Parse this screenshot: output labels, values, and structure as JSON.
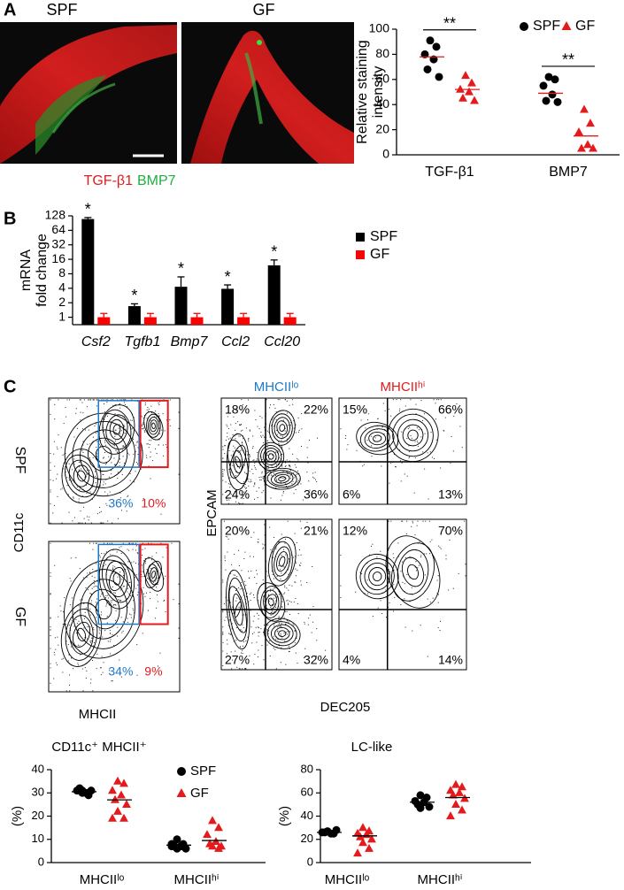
{
  "panel_labels": [
    "A",
    "B",
    "C"
  ],
  "images": {
    "titles": [
      "SPF",
      "GF"
    ],
    "stain_labels": [
      "TGF-β1",
      "BMP7"
    ]
  },
  "flow": {
    "row_labels": [
      "SPF",
      "GF"
    ],
    "gate_headers": [
      "MHCIIˡᵒ",
      "MHCIIʰⁱ"
    ],
    "axis_labels": {
      "left_y": "CD11c",
      "left_x": "MHCII",
      "right_y": "EPCAM",
      "right_x": "DEC205"
    },
    "rows": [
      {
        "gates": [
          "36%",
          "10%"
        ],
        "lo_quadrants": [
          "18%",
          "22%",
          "24%",
          "36%"
        ],
        "hi_quadrants": [
          "15%",
          "66%",
          "6%",
          "13%"
        ]
      },
      {
        "gates": [
          "34%",
          "9%"
        ],
        "lo_quadrants": [
          "20%",
          "21%",
          "27%",
          "32%"
        ],
        "hi_quadrants": [
          "12%",
          "70%",
          "4%",
          "14%"
        ]
      }
    ]
  },
  "chart_data": [
    {
      "type": "dot",
      "ylabel": [
        "Relative staining",
        "intensity"
      ],
      "categories": [
        "TGF-β1",
        "BMP7"
      ],
      "ylim": [
        0,
        100
      ],
      "yticks": [
        0,
        20,
        40,
        60,
        80,
        100
      ],
      "legend": "top-right",
      "mean_color": "#e41a1c",
      "significance": [
        "**",
        "**"
      ],
      "series": [
        {
          "name": "SPF",
          "color": "#000000",
          "marker": "circle",
          "values": [
            [
              91,
              86,
              80,
              76,
              68,
              62
            ],
            [
              62,
              60,
              55,
              48,
              43,
              42
            ]
          ],
          "means": [
            78,
            49
          ]
        },
        {
          "name": "GF",
          "color": "#e41a1c",
          "marker": "triangle",
          "values": [
            [
              63,
              57,
              52,
              50,
              45,
              43
            ],
            [
              36,
              25,
              18,
              8,
              5,
              5
            ]
          ],
          "means": [
            52,
            15
          ]
        }
      ]
    },
    {
      "type": "bar",
      "ylabel": [
        "mRNA",
        "fold change"
      ],
      "categories": [
        "Csf2",
        "Tgfb1",
        "Bmp7",
        "Ccl2",
        "Ccl20"
      ],
      "italic_categories": true,
      "log_base": 2,
      "ylim": [
        0.7,
        128
      ],
      "yticks": [
        1,
        2,
        4,
        8,
        16,
        32,
        64,
        128
      ],
      "legend": "right",
      "significance": [
        "*",
        "*",
        "*",
        "*",
        "*"
      ],
      "series": [
        {
          "name": "SPF",
          "color": "#000000",
          "values": [
            110,
            1.7,
            4.3,
            3.9,
            12
          ],
          "errors": [
            8,
            0.2,
            2.6,
            0.8,
            3.5
          ]
        },
        {
          "name": "GF",
          "color": "#ff0000",
          "values": [
            1,
            1,
            1,
            1,
            1
          ],
          "errors": [
            0.2,
            0.2,
            0.2,
            0.2,
            0.2
          ]
        }
      ]
    },
    {
      "type": "dot",
      "title": "CD11c⁺ MHCII⁺",
      "ylabel": "(%)",
      "categories": [
        "MHCIIˡᵒ",
        "MHCIIʰⁱ"
      ],
      "ylim": [
        0,
        40
      ],
      "yticks": [
        0,
        10,
        20,
        30,
        40
      ],
      "legend": "top-right",
      "mean_color": "#000000",
      "series": [
        {
          "name": "SPF",
          "color": "#000000",
          "marker": "circle",
          "values": [
            [
              31,
              30,
              31,
              30,
              32,
              31,
              30,
              29
            ],
            [
              10,
              8,
              7,
              7,
              7,
              6,
              6,
              7,
              8
            ]
          ],
          "means": [
            30.5,
            7.5
          ]
        },
        {
          "name": "GF",
          "color": "#e41a1c",
          "marker": "triangle",
          "values": [
            [
              35,
              34,
              31,
              29,
              27,
              25,
              22,
              19,
              19
            ],
            [
              18,
              15,
              12,
              9,
              8,
              7,
              7,
              6
            ]
          ],
          "means": [
            27,
            9.5
          ]
        }
      ]
    },
    {
      "type": "dot",
      "title": "LC-like",
      "ylabel": "(%)",
      "categories": [
        "MHCIIˡᵒ",
        "MHCIIʰⁱ"
      ],
      "ylim": [
        0,
        80
      ],
      "yticks": [
        0,
        20,
        40,
        60,
        80
      ],
      "legend": "none",
      "mean_color": "#000000",
      "series": [
        {
          "name": "SPF",
          "color": "#000000",
          "marker": "circle",
          "values": [
            [
              27,
              25,
              26,
              25,
              26,
              28
            ],
            [
              58,
              56,
              53,
              52,
              50,
              48,
              47
            ]
          ],
          "means": [
            26,
            52
          ]
        },
        {
          "name": "GF",
          "color": "#e41a1c",
          "marker": "triangle",
          "values": [
            [
              30,
              27,
              25,
              24,
              22,
              20,
              17,
              12,
              8
            ],
            [
              67,
              65,
              62,
              60,
              58,
              55,
              50,
              45,
              40
            ]
          ],
          "means": [
            23,
            56
          ]
        }
      ]
    }
  ]
}
